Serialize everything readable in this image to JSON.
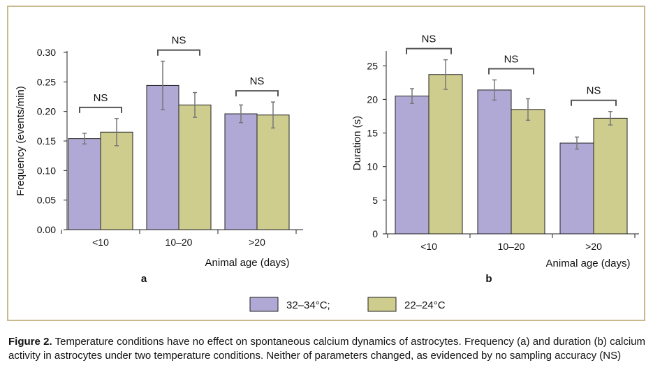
{
  "chart_data": [
    {
      "type": "bar",
      "panel_label": "a",
      "categories": [
        "<10",
        "10–20",
        ">20"
      ],
      "series": [
        {
          "name": "32–34°C;",
          "values": [
            0.154,
            0.244,
            0.196
          ],
          "errors": [
            0.009,
            0.041,
            0.015
          ]
        },
        {
          "name": "22–24°C",
          "values": [
            0.165,
            0.211,
            0.194
          ],
          "errors": [
            0.023,
            0.021,
            0.022
          ]
        }
      ],
      "significance": [
        "NS",
        "NS",
        "NS"
      ],
      "title": "",
      "xlabel": "Animal age (days)",
      "ylabel": "Frequency (events/min)",
      "ylim": [
        0,
        0.3
      ],
      "yticks": [
        "0.00",
        "0.05",
        "0.10",
        "0.15",
        "0.20",
        "0.25",
        "0.30"
      ],
      "grid": false
    },
    {
      "type": "bar",
      "panel_label": "b",
      "categories": [
        "<10",
        "10–20",
        ">20"
      ],
      "series": [
        {
          "name": "32–34°C;",
          "values": [
            20.5,
            21.4,
            13.5
          ],
          "errors": [
            1.1,
            1.5,
            0.9
          ]
        },
        {
          "name": "22–24°C",
          "values": [
            23.7,
            18.5,
            17.2
          ],
          "errors": [
            2.2,
            1.6,
            1.0
          ]
        }
      ],
      "significance": [
        "NS",
        "NS",
        "NS"
      ],
      "title": "",
      "xlabel": "Animal age (days)",
      "ylabel": "Duration (s)",
      "ylim": [
        0,
        27
      ],
      "yticks": [
        "0",
        "5",
        "10",
        "15",
        "20",
        "25"
      ],
      "grid": false
    }
  ],
  "legend": {
    "placement": "bottom-center",
    "items": [
      {
        "label": "32–34°C;",
        "color": "#b0a9d6"
      },
      {
        "label": "22–24°C",
        "color": "#cfcd8e"
      }
    ]
  },
  "caption": {
    "label": "Figure 2.",
    "text": " Temperature conditions have no effect on spontaneous calcium dynamics of astrocytes. Frequency (a) and duration (b) calcium activity in astrocytes under two temperature conditions. Neither of parameters changed, as evidenced by no sampling accuracy (NS)"
  },
  "colors": {
    "series1": "#b0a9d6",
    "series2": "#cfcd8e",
    "frame": "#c9b98d"
  }
}
